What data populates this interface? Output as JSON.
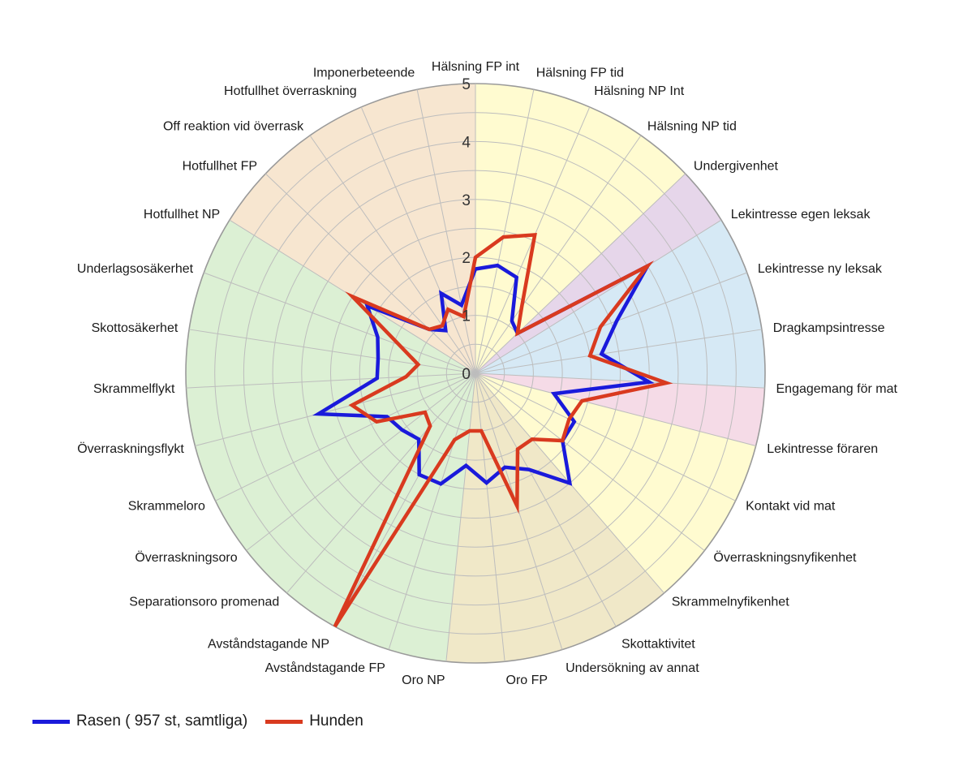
{
  "chart_data": {
    "type": "radar",
    "title": "",
    "rmax": 5,
    "ticks": [
      0,
      1,
      2,
      3,
      4,
      5
    ],
    "categories": [
      "Hälsning FP int",
      "Hälsning FP tid",
      "Hälsning NP Int",
      "Hälsning NP tid",
      "Undergivenhet",
      "Lekintresse egen leksak",
      "Lekintresse ny leksak",
      "Dragkampsintresse",
      "Engagemang för mat",
      "Lekintresse föraren",
      "Kontakt vid mat",
      "Överraskningsnyfikenhet",
      "Skrammelnyfikenhet",
      "Skottaktivitet",
      "Undersökning av annat",
      "Oro FP",
      "Oro NP",
      "Avståndstagande FP",
      "Avståndstagande NP",
      "Separationsoro promenad",
      "Överraskningsoro",
      "Skrammeloro",
      "Överraskningsflykt",
      "Skrammelflykt",
      "Skottosäkerhet",
      "Underlagsosäkerhet",
      "Hotfullhet NP",
      "Hotfullhet FP",
      "Off reaktion vid överrask",
      "Hotfullhet överraskning",
      "Imponerbeteende"
    ],
    "sectors": [
      {
        "from": 0,
        "to": 4,
        "color": "#fffbd0"
      },
      {
        "from": 4,
        "to": 5,
        "color": "#e6d6ea"
      },
      {
        "from": 5,
        "to": 8,
        "color": "#d6e9f5"
      },
      {
        "from": 8,
        "to": 9,
        "color": "#f5dbe7"
      },
      {
        "from": 9,
        "to": 12,
        "color": "#fffbd0"
      },
      {
        "from": 12,
        "to": 16,
        "color": "#f0e8c8"
      },
      {
        "from": 16,
        "to": 26,
        "color": "#dcf0d4"
      },
      {
        "from": 26,
        "to": 31,
        "color": "#f7e6d0"
      }
    ],
    "series": [
      {
        "name": "Rasen ( 957 st, samtliga)",
        "color": "#1a1adb",
        "values": [
          1.8,
          1.9,
          1.8,
          1.1,
          1.0,
          3.5,
          2.6,
          2.2,
          3.0,
          1.4,
          1.9,
          1.9,
          2.5,
          1.9,
          1.7,
          1.9,
          1.6,
          2.0,
          2.0,
          1.5,
          1.6,
          1.7,
          2.8,
          1.7,
          1.7,
          1.8,
          2.2,
          1.1,
          0.9,
          1.5,
          1.2
        ]
      },
      {
        "name": "Hunden",
        "color": "#d93a1f",
        "values": [
          2.0,
          2.4,
          2.6,
          1.4,
          1.0,
          3.5,
          2.3,
          2.0,
          3.3,
          1.9,
          1.8,
          1.9,
          1.5,
          1.5,
          2.4,
          1.0,
          1.0,
          1.2,
          5.0,
          1.2,
          1.1,
          1.9,
          2.2,
          1.2,
          1.0,
          1.4,
          2.5,
          1.1,
          1.0,
          1.2,
          1.0
        ]
      }
    ],
    "grid": true,
    "legend_position": "bottom-left"
  }
}
